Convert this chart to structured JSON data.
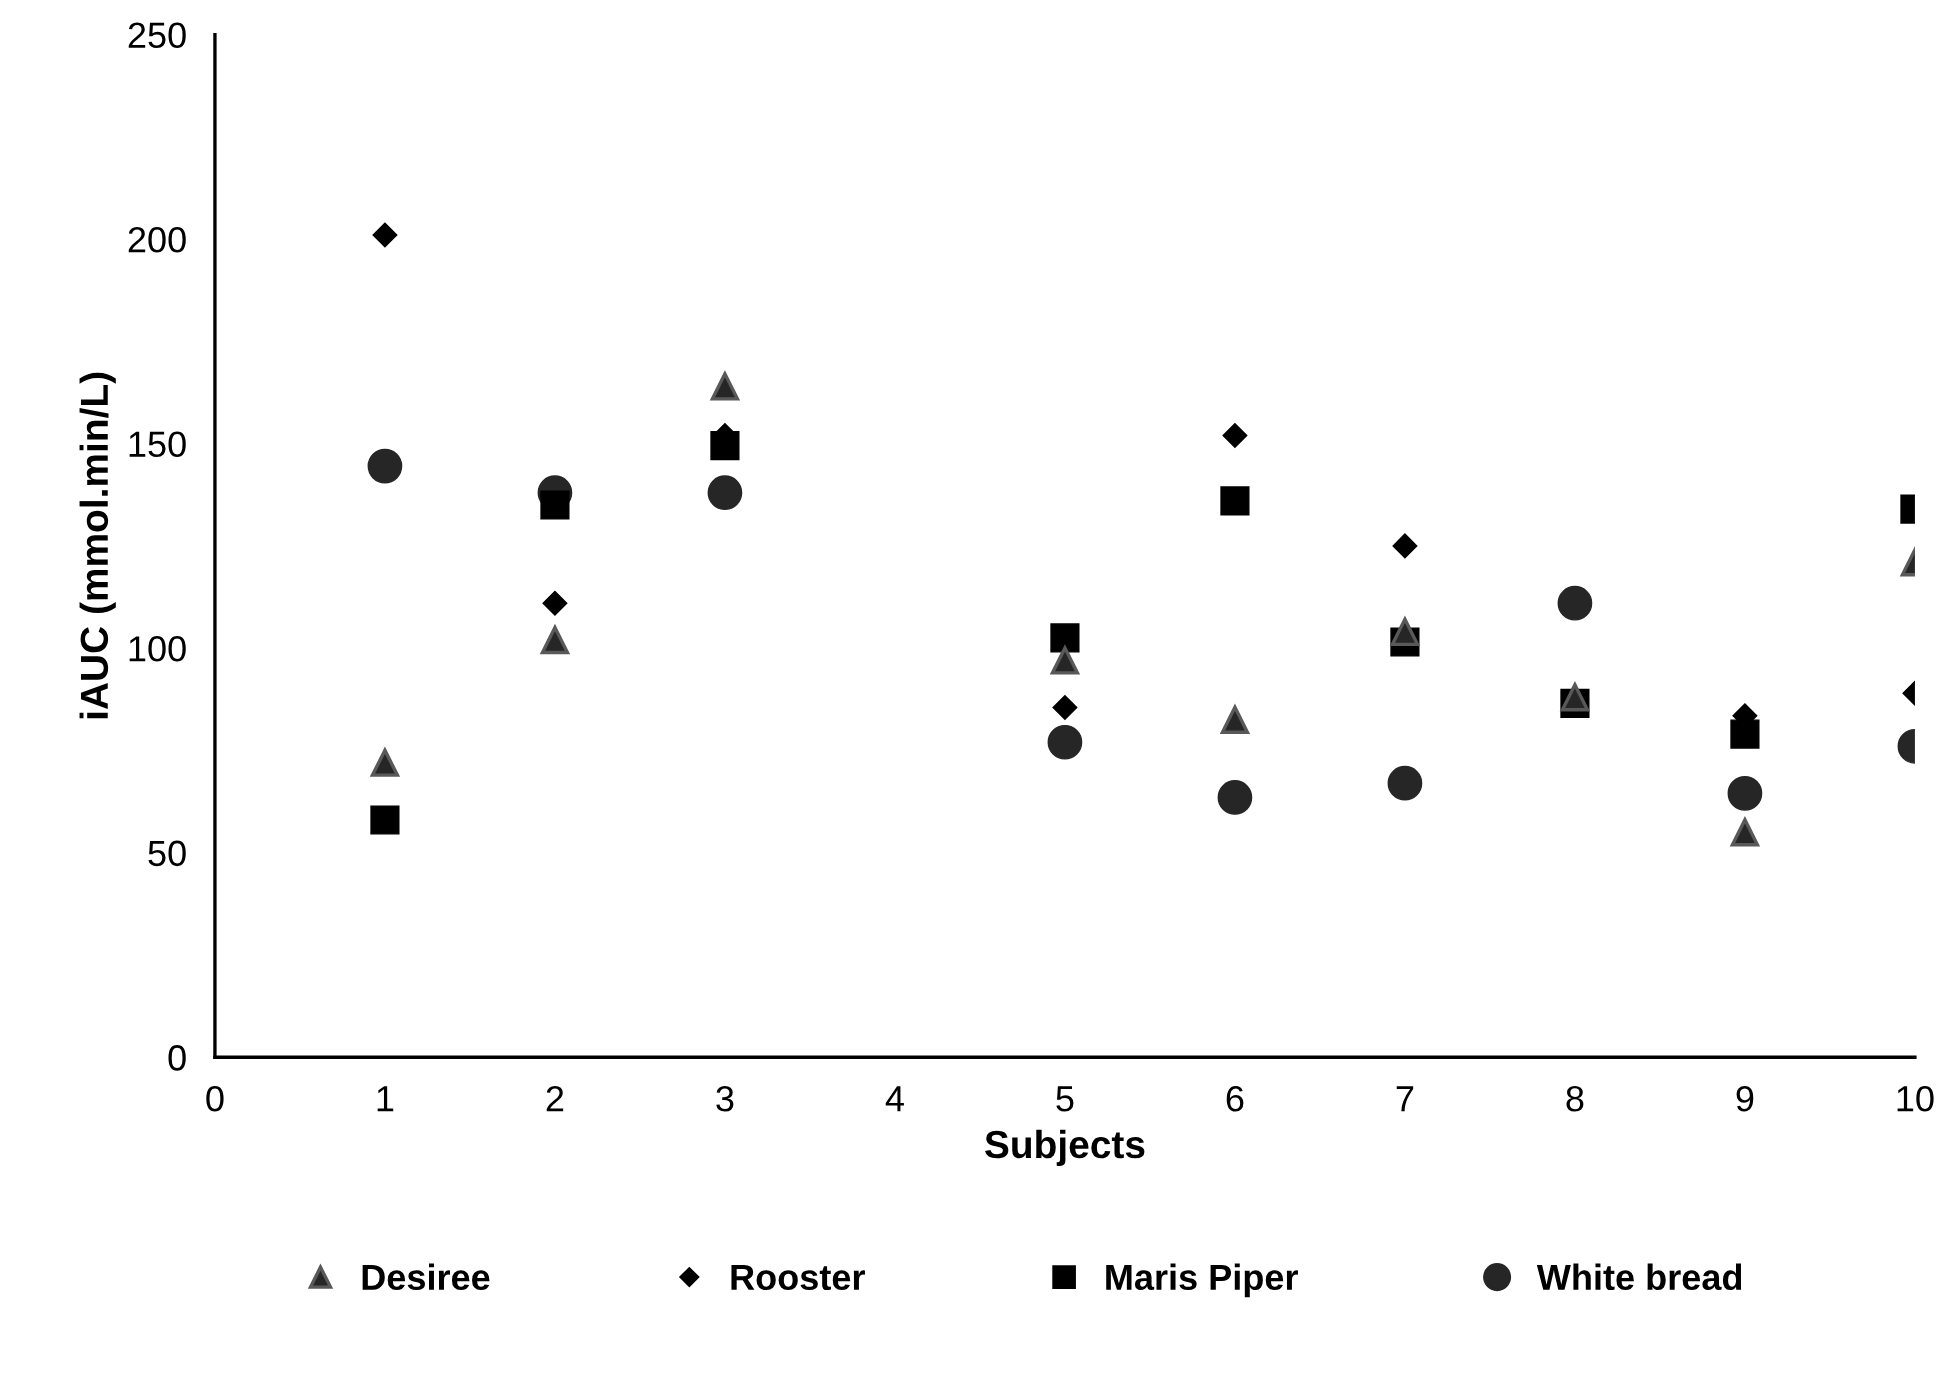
{
  "chart_data": {
    "type": "scatter",
    "xlabel": "Subjects",
    "ylabel": "iAUC (mmol.min/L)",
    "x": [
      1,
      2,
      3,
      5,
      6,
      7,
      8,
      9,
      10
    ],
    "xlim": [
      0,
      10
    ],
    "xticks": [
      0,
      1,
      2,
      3,
      4,
      5,
      6,
      7,
      8,
      9,
      10
    ],
    "ylim": [
      0,
      250
    ],
    "yticks": [
      0,
      50,
      100,
      150,
      200,
      250
    ],
    "grid": false,
    "legend": "bottom",
    "series": [
      {
        "name": "Desiree",
        "color": "#262626",
        "marker": "triangle",
        "values": [
          72,
          102,
          164,
          97,
          82.5,
          104,
          88,
          55,
          121
        ]
      },
      {
        "name": "Rooster",
        "color": "#000000",
        "marker": "diamond",
        "values": [
          201,
          111,
          152,
          85.5,
          152,
          125,
          null,
          83.5,
          89
        ]
      },
      {
        "name": "Maris Piper",
        "color": "#000000",
        "marker": "square",
        "values": [
          58,
          135,
          149.5,
          102.5,
          136,
          101.5,
          86.5,
          79,
          134
        ]
      },
      {
        "name": "White bread",
        "color": "#262626",
        "marker": "circle",
        "values": [
          144.5,
          138,
          138,
          77,
          63.5,
          67,
          111,
          64.5,
          76
        ]
      }
    ]
  }
}
